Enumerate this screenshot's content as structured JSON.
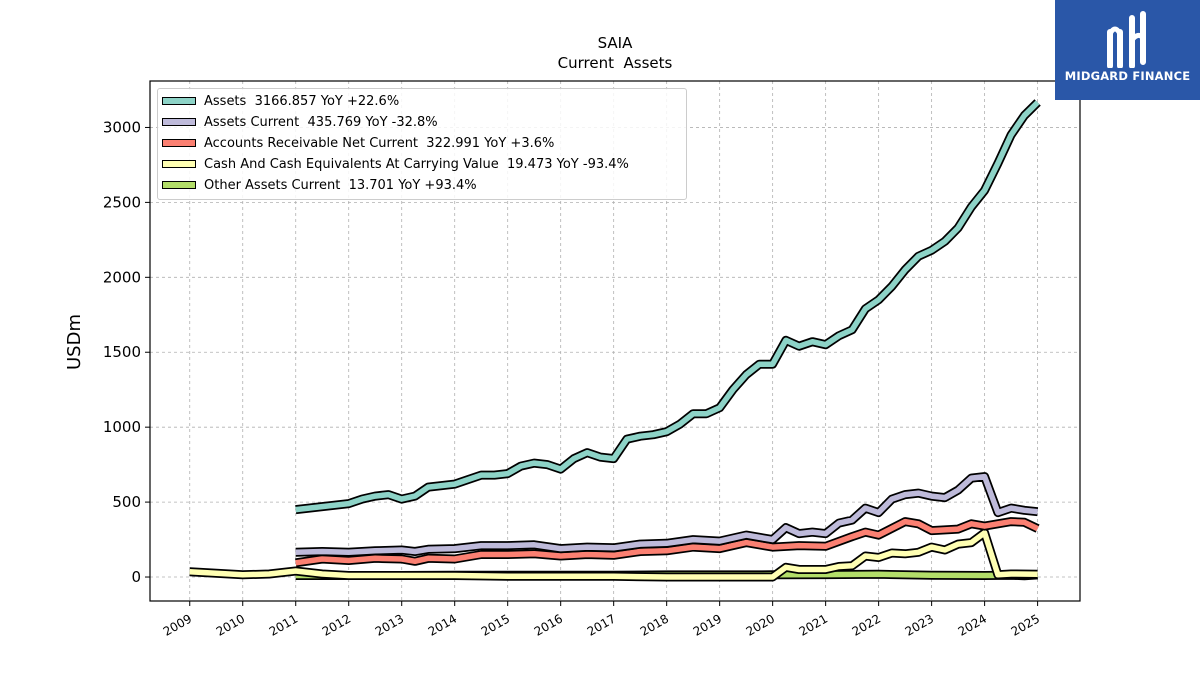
{
  "brand": {
    "name": "MIDGARD FINANCE",
    "color": "#2a57a8"
  },
  "chart_data": {
    "type": "line",
    "title": "SAIA",
    "subtitle": "Current  Assets",
    "ylabel": "USDm",
    "xlabel": "",
    "ylim": [
      -160,
      3310
    ],
    "xlim": [
      2008.25,
      2025.8
    ],
    "yticks": [
      0,
      500,
      1000,
      1500,
      2000,
      2500,
      3000
    ],
    "xticks": [
      "2009",
      "2010",
      "2011",
      "2012",
      "2013",
      "2014",
      "2015",
      "2016",
      "2017",
      "2018",
      "2019",
      "2020",
      "2021",
      "2022",
      "2023",
      "2024",
      "2025"
    ],
    "grid": true,
    "legend_position": "top-left",
    "series": [
      {
        "name": "Assets",
        "legend": "Assets  3166.857 YoY +22.6%",
        "color": "#8dd3c7",
        "points": [
          [
            2011.0,
            450
          ],
          [
            2011.25,
            460
          ],
          [
            2011.5,
            470
          ],
          [
            2011.75,
            480
          ],
          [
            2012.0,
            490
          ],
          [
            2012.25,
            520
          ],
          [
            2012.5,
            540
          ],
          [
            2012.75,
            550
          ],
          [
            2013.0,
            520
          ],
          [
            2013.25,
            540
          ],
          [
            2013.5,
            600
          ],
          [
            2013.75,
            610
          ],
          [
            2014.0,
            620
          ],
          [
            2014.25,
            650
          ],
          [
            2014.5,
            680
          ],
          [
            2014.75,
            680
          ],
          [
            2015.0,
            690
          ],
          [
            2015.25,
            740
          ],
          [
            2015.5,
            760
          ],
          [
            2015.75,
            750
          ],
          [
            2016.0,
            720
          ],
          [
            2016.25,
            790
          ],
          [
            2016.5,
            830
          ],
          [
            2016.75,
            800
          ],
          [
            2017.0,
            790
          ],
          [
            2017.25,
            920
          ],
          [
            2017.5,
            940
          ],
          [
            2017.75,
            950
          ],
          [
            2018.0,
            970
          ],
          [
            2018.25,
            1020
          ],
          [
            2018.5,
            1090
          ],
          [
            2018.75,
            1090
          ],
          [
            2019.0,
            1130
          ],
          [
            2019.25,
            1250
          ],
          [
            2019.5,
            1350
          ],
          [
            2019.75,
            1420
          ],
          [
            2020.0,
            1420
          ],
          [
            2020.25,
            1580
          ],
          [
            2020.5,
            1540
          ],
          [
            2020.75,
            1570
          ],
          [
            2021.0,
            1550
          ],
          [
            2021.25,
            1610
          ],
          [
            2021.5,
            1650
          ],
          [
            2021.75,
            1790
          ],
          [
            2022.0,
            1850
          ],
          [
            2022.25,
            1940
          ],
          [
            2022.5,
            2050
          ],
          [
            2022.75,
            2140
          ],
          [
            2023.0,
            2180
          ],
          [
            2023.25,
            2240
          ],
          [
            2023.5,
            2330
          ],
          [
            2023.75,
            2470
          ],
          [
            2024.0,
            2580
          ],
          [
            2024.25,
            2760
          ],
          [
            2024.5,
            2950
          ],
          [
            2024.75,
            3080
          ],
          [
            2025.0,
            3167
          ]
        ]
      },
      {
        "name": "Assets Current",
        "legend": "Assets Current  435.769 YoY -32.8%",
        "color": "#bebada",
        "points": [
          [
            2011.0,
            165
          ],
          [
            2011.5,
            170
          ],
          [
            2012.0,
            165
          ],
          [
            2012.5,
            175
          ],
          [
            2013.0,
            180
          ],
          [
            2013.25,
            170
          ],
          [
            2013.5,
            185
          ],
          [
            2014.0,
            190
          ],
          [
            2014.5,
            210
          ],
          [
            2015.0,
            210
          ],
          [
            2015.5,
            215
          ],
          [
            2016.0,
            190
          ],
          [
            2016.5,
            200
          ],
          [
            2017.0,
            195
          ],
          [
            2017.5,
            220
          ],
          [
            2018.0,
            225
          ],
          [
            2018.5,
            250
          ],
          [
            2019.0,
            240
          ],
          [
            2019.5,
            280
          ],
          [
            2020.0,
            250
          ],
          [
            2020.25,
            330
          ],
          [
            2020.5,
            290
          ],
          [
            2020.75,
            300
          ],
          [
            2021.0,
            290
          ],
          [
            2021.25,
            360
          ],
          [
            2021.5,
            380
          ],
          [
            2021.75,
            460
          ],
          [
            2022.0,
            430
          ],
          [
            2022.25,
            520
          ],
          [
            2022.5,
            550
          ],
          [
            2022.75,
            560
          ],
          [
            2023.0,
            540
          ],
          [
            2023.25,
            530
          ],
          [
            2023.5,
            580
          ],
          [
            2023.75,
            660
          ],
          [
            2024.0,
            670
          ],
          [
            2024.25,
            430
          ],
          [
            2024.5,
            460
          ],
          [
            2024.75,
            445
          ],
          [
            2025.0,
            436
          ]
        ]
      },
      {
        "name": "Accounts Receivable Net Current",
        "legend": "Accounts Receivable Net Current  322.991 YoY +3.6%",
        "color": "#fb8072",
        "points": [
          [
            2011.0,
            95
          ],
          [
            2011.5,
            120
          ],
          [
            2012.0,
            110
          ],
          [
            2012.5,
            125
          ],
          [
            2013.0,
            120
          ],
          [
            2013.25,
            105
          ],
          [
            2013.5,
            125
          ],
          [
            2014.0,
            120
          ],
          [
            2014.5,
            150
          ],
          [
            2015.0,
            150
          ],
          [
            2015.5,
            155
          ],
          [
            2016.0,
            140
          ],
          [
            2016.5,
            150
          ],
          [
            2017.0,
            145
          ],
          [
            2017.5,
            170
          ],
          [
            2018.0,
            175
          ],
          [
            2018.5,
            200
          ],
          [
            2019.0,
            190
          ],
          [
            2019.5,
            230
          ],
          [
            2020.0,
            200
          ],
          [
            2020.5,
            210
          ],
          [
            2021.0,
            205
          ],
          [
            2021.5,
            270
          ],
          [
            2021.75,
            300
          ],
          [
            2022.0,
            280
          ],
          [
            2022.5,
            370
          ],
          [
            2022.75,
            355
          ],
          [
            2023.0,
            310
          ],
          [
            2023.5,
            320
          ],
          [
            2023.75,
            355
          ],
          [
            2024.0,
            340
          ],
          [
            2024.5,
            370
          ],
          [
            2024.75,
            365
          ],
          [
            2025.0,
            323
          ]
        ]
      },
      {
        "name": "Cash And Cash Equivalents At Carrying Value",
        "legend": "Cash And Cash Equivalents At Carrying Value  19.473 YoY -93.4%",
        "color": "#ffffb3",
        "points": [
          [
            2009.0,
            35
          ],
          [
            2009.5,
            25
          ],
          [
            2010.0,
            15
          ],
          [
            2010.5,
            20
          ],
          [
            2011.0,
            40
          ],
          [
            2011.5,
            20
          ],
          [
            2012.0,
            10
          ],
          [
            2013.0,
            10
          ],
          [
            2014.0,
            10
          ],
          [
            2015.0,
            5
          ],
          [
            2016.0,
            5
          ],
          [
            2017.0,
            5
          ],
          [
            2018.0,
            0
          ],
          [
            2019.0,
            0
          ],
          [
            2020.0,
            0
          ],
          [
            2020.25,
            65
          ],
          [
            2020.5,
            50
          ],
          [
            2021.0,
            50
          ],
          [
            2021.25,
            70
          ],
          [
            2021.5,
            75
          ],
          [
            2021.75,
            140
          ],
          [
            2022.0,
            130
          ],
          [
            2022.25,
            160
          ],
          [
            2022.5,
            155
          ],
          [
            2022.75,
            165
          ],
          [
            2023.0,
            200
          ],
          [
            2023.25,
            180
          ],
          [
            2023.5,
            220
          ],
          [
            2023.75,
            230
          ],
          [
            2024.0,
            295
          ],
          [
            2024.25,
            15
          ],
          [
            2024.5,
            20
          ],
          [
            2025.0,
            19
          ]
        ]
      },
      {
        "name": "Other Assets Current",
        "legend": "Other Assets Current  13.701 YoY +93.4%",
        "color": "#b3de69",
        "points": [
          [
            2011.0,
            10
          ],
          [
            2012.0,
            10
          ],
          [
            2013.0,
            10
          ],
          [
            2014.0,
            12
          ],
          [
            2015.0,
            12
          ],
          [
            2016.0,
            12
          ],
          [
            2017.0,
            12
          ],
          [
            2018.0,
            14
          ],
          [
            2019.0,
            14
          ],
          [
            2020.0,
            15
          ],
          [
            2021.0,
            16
          ],
          [
            2022.0,
            18
          ],
          [
            2023.0,
            12
          ],
          [
            2024.0,
            10
          ],
          [
            2024.5,
            12
          ],
          [
            2024.75,
            8
          ],
          [
            2025.0,
            14
          ]
        ]
      }
    ]
  }
}
